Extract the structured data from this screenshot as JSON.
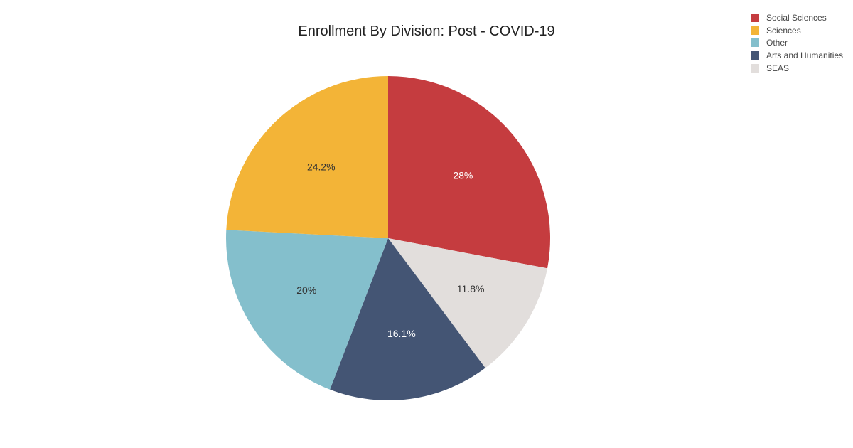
{
  "chart_data": {
    "type": "pie",
    "title": "Enrollment By Division: Post - COVID-19",
    "legend_position": "top-right",
    "slices": [
      {
        "name": "Social Sciences",
        "value": 28.0,
        "label": "28%",
        "color": "#c53c3f",
        "label_color": "#ffffff"
      },
      {
        "name": "SEAS",
        "value": 11.8,
        "label": "11.8%",
        "color": "#e2dedc",
        "label_color": "#333333"
      },
      {
        "name": "Arts and Humanities",
        "value": 16.1,
        "label": "16.1%",
        "color": "#445574",
        "label_color": "#ffffff"
      },
      {
        "name": "Other",
        "value": 20.0,
        "label": "20%",
        "color": "#84bfcc",
        "label_color": "#333333"
      },
      {
        "name": "Sciences",
        "value": 24.2,
        "label": "24.2%",
        "color": "#f3b437",
        "label_color": "#333333"
      }
    ],
    "legend": [
      {
        "name": "Social Sciences",
        "color": "#c53c3f"
      },
      {
        "name": "Sciences",
        "color": "#f3b437"
      },
      {
        "name": "Other",
        "color": "#84bfcc"
      },
      {
        "name": "Arts and Humanities",
        "color": "#445574"
      },
      {
        "name": "SEAS",
        "color": "#e2dedc"
      }
    ]
  }
}
